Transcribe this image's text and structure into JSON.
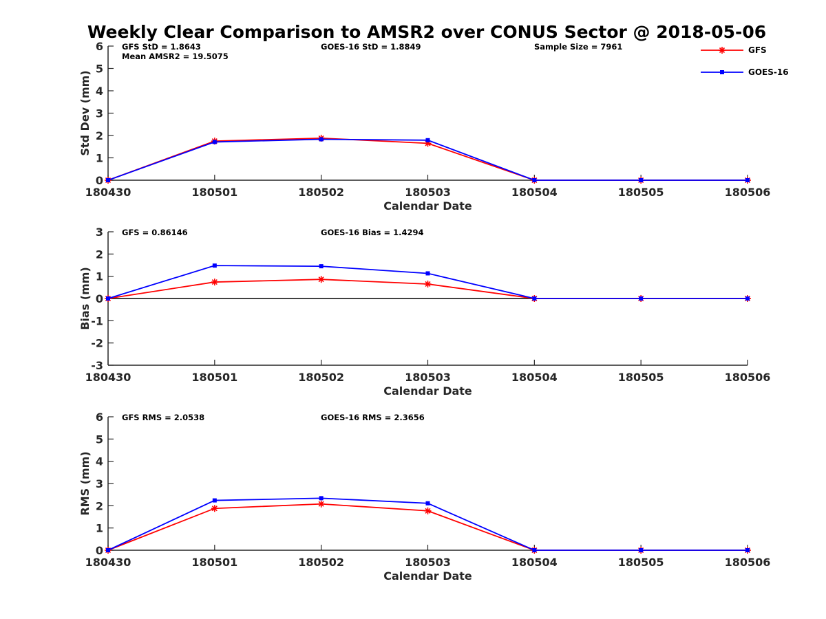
{
  "title": "Weekly Clear Comparison to AMSR2 over CONUS Sector @ 2018-05-06",
  "legend": {
    "placement": "top-right",
    "entries": [
      {
        "name": "GFS",
        "color": "#ff0000",
        "marker": "asterisk"
      },
      {
        "name": "GOES-16",
        "color": "#0000ff",
        "marker": "square"
      }
    ]
  },
  "chart_data": [
    {
      "type": "line",
      "xlabel": "Calendar Date",
      "ylabel": "Std Dev (mm)",
      "ylim": [
        0,
        6
      ],
      "yticks": [
        0,
        1,
        2,
        3,
        4,
        5,
        6
      ],
      "x": [
        "180430",
        "180501",
        "180502",
        "180503",
        "180504",
        "180505",
        "180506"
      ],
      "zero_line": false,
      "annotations": [
        {
          "text": "GFS StD = 1.8643",
          "pos": "upper-left"
        },
        {
          "text": "Mean AMSR2 = 19.5075",
          "pos": "upper-left-2"
        },
        {
          "text": "GOES-16 StD = 1.8849",
          "pos": "upper-center"
        },
        {
          "text": "Sample Size = 7961",
          "pos": "upper-right"
        }
      ],
      "series": [
        {
          "name": "GFS",
          "values": [
            0.0,
            1.75,
            1.88,
            1.65,
            0.0,
            0.0,
            0.0
          ]
        },
        {
          "name": "GOES-16",
          "values": [
            0.0,
            1.71,
            1.83,
            1.79,
            0.0,
            0.0,
            0.0
          ]
        }
      ]
    },
    {
      "type": "line",
      "xlabel": "Calendar Date",
      "ylabel": "Bias (mm)",
      "ylim": [
        -3,
        3
      ],
      "yticks": [
        -3,
        -2,
        -1,
        0,
        1,
        2,
        3
      ],
      "x": [
        "180430",
        "180501",
        "180502",
        "180503",
        "180504",
        "180505",
        "180506"
      ],
      "zero_line": true,
      "annotations": [
        {
          "text": "GFS = 0.86146",
          "pos": "upper-left"
        },
        {
          "text": "GOES-16 Bias  = 1.4294",
          "pos": "upper-center"
        }
      ],
      "series": [
        {
          "name": "GFS",
          "values": [
            0.0,
            0.74,
            0.86,
            0.65,
            0.0,
            0.0,
            0.0
          ]
        },
        {
          "name": "GOES-16",
          "values": [
            0.0,
            1.48,
            1.45,
            1.13,
            0.0,
            0.0,
            0.0
          ]
        }
      ]
    },
    {
      "type": "line",
      "xlabel": "Calendar Date",
      "ylabel": "RMS (mm)",
      "ylim": [
        0,
        6
      ],
      "yticks": [
        0,
        1,
        2,
        3,
        4,
        5,
        6
      ],
      "x": [
        "180430",
        "180501",
        "180502",
        "180503",
        "180504",
        "180505",
        "180506"
      ],
      "zero_line": false,
      "annotations": [
        {
          "text": "GFS RMS = 2.0538",
          "pos": "upper-left"
        },
        {
          "text": "GOES-16 RMS = 2.3656",
          "pos": "upper-center"
        }
      ],
      "series": [
        {
          "name": "GFS",
          "values": [
            0.0,
            1.88,
            2.08,
            1.77,
            0.0,
            0.0,
            0.0
          ]
        },
        {
          "name": "GOES-16",
          "values": [
            0.0,
            2.24,
            2.34,
            2.11,
            0.0,
            0.0,
            0.0
          ]
        }
      ]
    }
  ]
}
